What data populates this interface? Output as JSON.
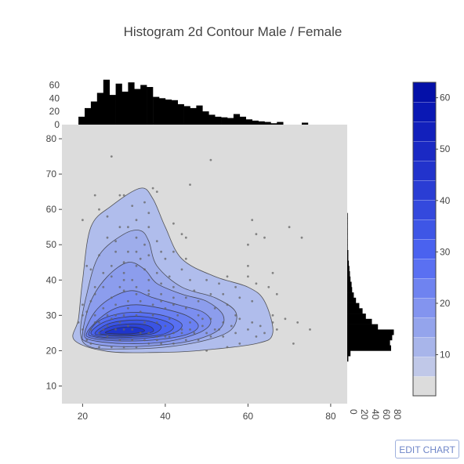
{
  "chart_data": {
    "type": "histogram2dcontour",
    "title": "Histogram 2d Contour Male / Female",
    "xlabel": "",
    "ylabel": "",
    "xlim": [
      15,
      84
    ],
    "ylim": [
      5,
      84
    ],
    "x_ticks": [
      "20",
      "40",
      "60",
      "80"
    ],
    "y_ticks": [
      "10",
      "20",
      "30",
      "40",
      "50",
      "60",
      "70",
      "80"
    ],
    "x_hist": {
      "ylim": [
        0,
        70
      ],
      "ticks": [
        "0",
        "20",
        "40",
        "60"
      ],
      "bin_start": 19,
      "bin_width": 1.5,
      "counts": [
        12,
        25,
        35,
        48,
        68,
        45,
        62,
        50,
        64,
        54,
        60,
        57,
        42,
        40,
        38,
        37,
        31,
        28,
        25,
        29,
        20,
        15,
        12,
        11,
        10,
        16,
        12,
        8,
        6,
        5,
        4,
        2,
        4,
        0,
        0,
        0,
        3,
        0,
        0,
        0,
        0,
        0,
        0,
        0,
        0,
        0
      ]
    },
    "y_hist": {
      "xlim": [
        0,
        90
      ],
      "ticks": [
        "0",
        "20",
        "40",
        "60",
        "80"
      ],
      "bin_start": 17,
      "bin_width": 1.5,
      "counts": [
        2,
        6,
        80,
        78,
        82,
        85,
        56,
        45,
        34,
        28,
        22,
        16,
        12,
        9,
        8,
        6,
        5,
        4,
        3,
        2,
        2,
        1,
        1,
        1,
        1,
        1,
        1,
        1,
        0,
        0,
        0,
        0,
        0,
        0,
        0,
        0,
        0,
        0,
        0,
        0,
        0,
        0,
        0
      ]
    },
    "colorscale": {
      "ticks": [
        "10",
        "20",
        "30",
        "40",
        "50",
        "60"
      ],
      "min": 2,
      "max": 63,
      "colors": [
        "#dcdcdc",
        "#c0c8e8",
        "#a8b5ea",
        "#94a4ec",
        "#8394ef",
        "#6f83f0",
        "#5a70f2",
        "#4a62ef",
        "#3e56e6",
        "#3449dd",
        "#2a3dd4",
        "#2233cc",
        "#1a29c4",
        "#1220bc",
        "#0a18b4",
        "#0410a8"
      ]
    },
    "contour_levels": [
      {
        "fill": "#b0bdec",
        "points": [
          [
            19,
            29
          ],
          [
            20,
            40
          ],
          [
            22,
            55
          ],
          [
            27,
            61
          ],
          [
            34,
            66
          ],
          [
            37,
            63
          ],
          [
            40,
            55
          ],
          [
            44,
            46
          ],
          [
            52,
            41
          ],
          [
            60,
            38
          ],
          [
            64,
            34
          ],
          [
            66,
            25
          ],
          [
            62,
            22
          ],
          [
            48,
            20
          ],
          [
            38,
            19.5
          ],
          [
            26,
            19.8
          ],
          [
            18,
            23
          ]
        ]
      },
      {
        "fill": "#9eadeb",
        "points": [
          [
            19.5,
            25
          ],
          [
            21,
            36
          ],
          [
            24,
            47
          ],
          [
            30,
            53
          ],
          [
            34,
            54
          ],
          [
            36,
            51
          ],
          [
            38,
            44
          ],
          [
            44,
            38
          ],
          [
            52,
            35
          ],
          [
            57,
            31
          ],
          [
            56,
            26
          ],
          [
            50,
            23
          ],
          [
            40,
            21
          ],
          [
            30,
            20.5
          ],
          [
            22,
            21
          ]
        ]
      },
      {
        "fill": "#8c9ded",
        "points": [
          [
            20,
            25
          ],
          [
            22,
            34
          ],
          [
            26,
            41
          ],
          [
            31,
            45
          ],
          [
            35,
            43
          ],
          [
            38,
            39
          ],
          [
            44,
            36
          ],
          [
            50,
            34
          ],
          [
            54,
            30
          ],
          [
            53,
            26
          ],
          [
            47,
            23
          ],
          [
            38,
            21.5
          ],
          [
            28,
            21.2
          ],
          [
            21,
            22.5
          ]
        ]
      },
      {
        "fill": "#7b8ef0",
        "points": [
          [
            20.5,
            25
          ],
          [
            23,
            31
          ],
          [
            27,
            35
          ],
          [
            32,
            37
          ],
          [
            37,
            35
          ],
          [
            43,
            33
          ],
          [
            49,
            31
          ],
          [
            51,
            28
          ],
          [
            48,
            25
          ],
          [
            40,
            22.5
          ],
          [
            30,
            22
          ],
          [
            22,
            23
          ]
        ]
      },
      {
        "fill": "#6a80f1",
        "points": [
          [
            21,
            25
          ],
          [
            24,
            29
          ],
          [
            28,
            32
          ],
          [
            33,
            33
          ],
          [
            39,
            32
          ],
          [
            45,
            30
          ],
          [
            48,
            27
          ],
          [
            45,
            24.5
          ],
          [
            37,
            23
          ],
          [
            28,
            22.8
          ],
          [
            22,
            23.6
          ]
        ]
      },
      {
        "fill": "#5870f2",
        "points": [
          [
            21.5,
            25
          ],
          [
            24,
            28.5
          ],
          [
            29,
            30.5
          ],
          [
            34,
            30.8
          ],
          [
            40,
            29.8
          ],
          [
            44,
            27.5
          ],
          [
            42,
            25
          ],
          [
            35,
            23.5
          ],
          [
            27,
            23.3
          ],
          [
            22.5,
            24
          ]
        ]
      },
      {
        "fill": "#4963ee",
        "points": [
          [
            22,
            25
          ],
          [
            25,
            28
          ],
          [
            30,
            29.5
          ],
          [
            35,
            29.6
          ],
          [
            40,
            28.4
          ],
          [
            42,
            26.5
          ],
          [
            39,
            24.5
          ],
          [
            32,
            23.8
          ],
          [
            25,
            23.8
          ]
        ]
      },
      {
        "fill": "#3b54e3",
        "points": [
          [
            23,
            25
          ],
          [
            26,
            27.5
          ],
          [
            31,
            28.6
          ],
          [
            36,
            28.4
          ],
          [
            39,
            26.8
          ],
          [
            37,
            24.8
          ],
          [
            31,
            24.1
          ],
          [
            25,
            24.3
          ]
        ]
      },
      {
        "fill": "#2d44d8",
        "points": [
          [
            24,
            25
          ],
          [
            27,
            26.9
          ],
          [
            32,
            27.6
          ],
          [
            36,
            27
          ],
          [
            37,
            25.4
          ],
          [
            33,
            24.5
          ],
          [
            27,
            24.5
          ]
        ]
      },
      {
        "fill": "#1f35cc",
        "points": [
          [
            25.5,
            25.2
          ],
          [
            29,
            26.5
          ],
          [
            33,
            26.6
          ],
          [
            35,
            25.6
          ],
          [
            32,
            24.8
          ],
          [
            27.5,
            24.8
          ]
        ]
      }
    ],
    "scatter_points": [
      [
        27,
        75
      ],
      [
        51,
        74
      ],
      [
        37,
        66
      ],
      [
        38,
        65
      ],
      [
        29,
        64
      ],
      [
        30,
        64
      ],
      [
        23,
        64
      ],
      [
        35,
        62
      ],
      [
        32,
        61
      ],
      [
        46,
        67
      ],
      [
        36,
        59
      ],
      [
        24,
        60
      ],
      [
        26,
        58
      ],
      [
        29,
        55
      ],
      [
        31,
        55
      ],
      [
        33,
        52
      ],
      [
        20,
        57
      ],
      [
        61,
        57
      ],
      [
        62,
        53
      ],
      [
        70,
        55
      ],
      [
        73,
        52
      ],
      [
        64,
        52
      ],
      [
        60,
        50
      ],
      [
        42,
        56
      ],
      [
        44,
        53
      ],
      [
        45,
        52
      ],
      [
        26,
        52
      ],
      [
        28,
        48
      ],
      [
        33,
        48
      ],
      [
        36,
        47
      ],
      [
        24,
        47
      ],
      [
        21,
        44
      ],
      [
        22,
        43
      ],
      [
        30,
        45
      ],
      [
        35,
        43
      ],
      [
        41,
        41
      ],
      [
        44,
        43
      ],
      [
        46,
        40
      ],
      [
        50,
        40
      ],
      [
        53,
        39
      ],
      [
        57,
        38
      ],
      [
        60,
        41
      ],
      [
        62,
        39
      ],
      [
        65,
        38
      ],
      [
        67,
        36
      ],
      [
        61,
        34
      ],
      [
        58,
        35
      ],
      [
        55,
        33
      ],
      [
        52,
        32
      ],
      [
        48,
        34
      ],
      [
        45,
        35
      ],
      [
        42,
        35
      ],
      [
        39,
        36
      ],
      [
        36,
        37
      ],
      [
        33,
        38
      ],
      [
        30,
        40
      ],
      [
        27,
        41
      ],
      [
        25,
        38
      ],
      [
        23,
        36
      ],
      [
        20,
        33
      ],
      [
        20,
        30
      ],
      [
        19,
        28
      ],
      [
        20,
        26
      ],
      [
        21,
        23
      ],
      [
        22,
        22
      ],
      [
        24,
        21
      ],
      [
        27,
        21
      ],
      [
        30,
        21
      ],
      [
        33,
        21
      ],
      [
        36,
        22
      ],
      [
        39,
        22
      ],
      [
        42,
        22
      ],
      [
        45,
        23
      ],
      [
        48,
        23
      ],
      [
        51,
        24
      ],
      [
        54,
        24
      ],
      [
        57,
        25
      ],
      [
        60,
        26
      ],
      [
        63,
        27
      ],
      [
        66,
        28
      ],
      [
        69,
        29
      ],
      [
        66,
        30
      ],
      [
        72,
        28
      ],
      [
        75,
        26
      ],
      [
        71,
        22
      ],
      [
        58,
        22
      ],
      [
        55,
        21
      ],
      [
        50,
        20
      ],
      [
        62,
        24
      ],
      [
        52,
        26
      ],
      [
        49,
        27
      ],
      [
        46,
        28
      ],
      [
        43,
        30
      ],
      [
        40,
        32
      ],
      [
        37,
        33
      ],
      [
        34,
        34
      ],
      [
        31,
        34
      ],
      [
        28,
        33
      ],
      [
        25,
        32
      ],
      [
        23,
        30
      ],
      [
        24,
        28
      ],
      [
        26,
        27
      ],
      [
        28,
        26
      ],
      [
        30,
        26
      ],
      [
        32,
        26
      ],
      [
        34,
        25
      ],
      [
        36,
        25
      ],
      [
        38,
        24
      ],
      [
        40,
        24
      ],
      [
        42,
        25
      ],
      [
        44,
        26
      ],
      [
        46,
        26
      ],
      [
        33,
        30
      ],
      [
        30,
        30
      ],
      [
        27,
        29
      ],
      [
        35,
        28
      ],
      [
        38,
        28
      ],
      [
        41,
        29
      ],
      [
        29,
        28
      ],
      [
        31,
        27
      ],
      [
        25,
        26
      ],
      [
        26,
        24
      ],
      [
        29,
        23
      ],
      [
        32,
        23
      ],
      [
        35,
        23
      ],
      [
        38,
        23
      ],
      [
        41,
        24
      ],
      [
        44,
        25
      ],
      [
        47,
        25
      ],
      [
        31,
        32
      ],
      [
        34,
        31
      ],
      [
        37,
        30
      ],
      [
        40,
        27
      ],
      [
        28,
        30
      ],
      [
        24,
        25
      ],
      [
        22,
        26
      ],
      [
        23,
        28
      ],
      [
        27,
        35
      ],
      [
        30,
        37
      ],
      [
        33,
        36
      ],
      [
        36,
        36
      ],
      [
        39,
        34
      ],
      [
        42,
        33
      ],
      [
        45,
        32
      ],
      [
        48,
        30
      ],
      [
        51,
        29
      ],
      [
        54,
        28
      ],
      [
        57,
        30
      ],
      [
        56,
        27
      ],
      [
        53,
        26
      ],
      [
        50,
        25
      ],
      [
        30,
        42
      ],
      [
        33,
        44
      ],
      [
        27,
        44
      ],
      [
        36,
        40
      ],
      [
        39,
        39
      ],
      [
        42,
        38
      ],
      [
        47,
        37
      ],
      [
        51,
        36
      ],
      [
        54,
        36
      ],
      [
        58,
        29
      ],
      [
        61,
        28
      ],
      [
        64,
        25
      ],
      [
        67,
        26
      ],
      [
        49,
        29
      ],
      [
        26,
        30
      ],
      [
        32,
        40
      ],
      [
        29,
        38
      ],
      [
        38,
        42
      ],
      [
        34,
        46
      ],
      [
        31,
        48
      ],
      [
        28,
        51
      ],
      [
        35,
        50
      ],
      [
        40,
        46
      ],
      [
        38,
        51
      ],
      [
        45,
        46
      ],
      [
        55,
        41
      ],
      [
        60,
        44
      ],
      [
        66,
        42
      ],
      [
        21,
        31
      ],
      [
        22,
        34
      ],
      [
        23,
        38
      ],
      [
        25,
        42
      ],
      [
        33,
        57
      ],
      [
        36,
        55
      ],
      [
        39,
        48
      ],
      [
        42,
        48
      ]
    ]
  },
  "toolbar": {
    "edit_label": "EDIT CHART"
  },
  "colors": {
    "plot_bg": "#dcdcdc",
    "histogram": "#000000",
    "contour_line": "#333333"
  }
}
